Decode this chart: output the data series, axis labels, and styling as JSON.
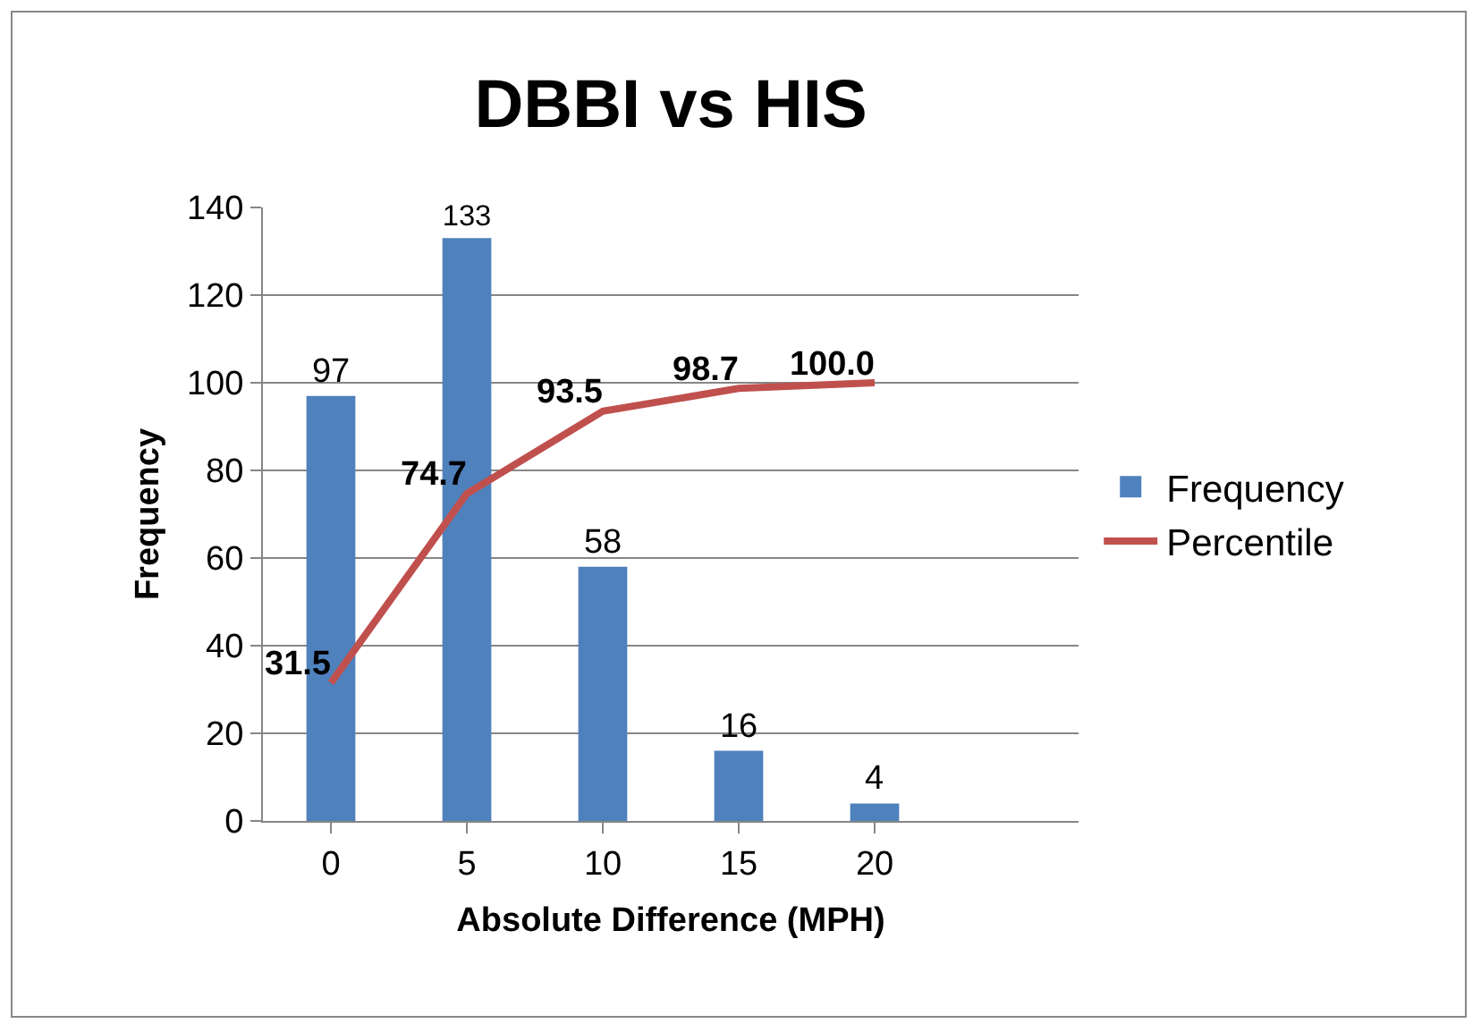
{
  "chart_data": {
    "type": "bar",
    "title": "DBBI vs HIS",
    "xlabel": "Absolute Difference (MPH)",
    "ylabel": "Frequency",
    "categories": [
      "0",
      "5",
      "10",
      "15",
      "20",
      null
    ],
    "series": [
      {
        "name": "Frequency",
        "color": "#4f81bd",
        "values": [
          97,
          133,
          58,
          16,
          4,
          null
        ],
        "value_labels": [
          "97",
          "133",
          "58",
          "16",
          "4",
          null
        ]
      },
      {
        "name": "Percentile",
        "type": "line",
        "color": "#c0504d",
        "values": [
          31.5,
          74.7,
          93.5,
          98.7,
          100.0,
          null
        ],
        "value_labels": [
          "31.5",
          "74.7",
          "93.5",
          "98.7",
          "100.0",
          null
        ]
      }
    ],
    "ylim": [
      0,
      140
    ],
    "yticks": [
      0,
      20,
      40,
      60,
      80,
      100,
      120,
      140
    ],
    "grid": "y",
    "legend": "right",
    "marker": "none",
    "line_style": "solid"
  }
}
